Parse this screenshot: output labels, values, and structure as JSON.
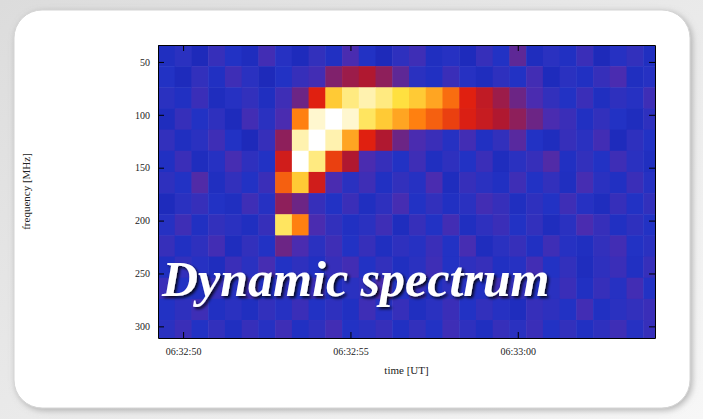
{
  "chart_data": {
    "type": "heatmap",
    "annotation": "Dynamic spectrum",
    "xlabel": "time [UT]",
    "ylabel": "frequency [MHz]",
    "xlim": [
      49.25,
      64.1
    ],
    "ylim": [
      34,
      311
    ],
    "xticks": [
      {
        "value": 50,
        "label": "06:32:50"
      },
      {
        "value": 55,
        "label": "06:32:55"
      },
      {
        "value": 60,
        "label": "06:33:00"
      }
    ],
    "yticks": [
      50,
      100,
      150,
      200,
      250,
      300
    ],
    "xbins": [
      49.25,
      49.75,
      50.25,
      50.75,
      51.25,
      51.75,
      52.25,
      52.75,
      53.25,
      53.75,
      54.25,
      54.75,
      55.25,
      55.75,
      56.25,
      56.75,
      57.25,
      57.75,
      58.25,
      58.75,
      59.25,
      59.75,
      60.25,
      60.75,
      61.25,
      61.75,
      62.25,
      62.75,
      63.25,
      63.75,
      64.25
    ],
    "ybins": [
      34,
      54,
      74,
      94,
      114,
      134,
      154,
      174,
      194,
      214,
      234,
      254,
      274,
      294,
      311
    ],
    "zlim": [
      0,
      1
    ],
    "z": [
      [
        0.18,
        0.22,
        0.15,
        0.25,
        0.2,
        0.17,
        0.28,
        0.21,
        0.16,
        0.24,
        0.19,
        0.3,
        0.2,
        0.15,
        0.23,
        0.27,
        0.18,
        0.21,
        0.16,
        0.25,
        0.2,
        0.33,
        0.17,
        0.22,
        0.19,
        0.26,
        0.15,
        0.21,
        0.24,
        0.18
      ],
      [
        0.2,
        0.16,
        0.24,
        0.19,
        0.27,
        0.22,
        0.15,
        0.2,
        0.25,
        0.28,
        0.38,
        0.42,
        0.45,
        0.4,
        0.33,
        0.22,
        0.19,
        0.26,
        0.21,
        0.17,
        0.23,
        0.2,
        0.28,
        0.16,
        0.22,
        0.19,
        0.25,
        0.3,
        0.18,
        0.21
      ],
      [
        0.22,
        0.19,
        0.26,
        0.17,
        0.21,
        0.24,
        0.18,
        0.27,
        0.35,
        0.6,
        0.85,
        0.92,
        0.95,
        0.92,
        0.88,
        0.85,
        0.8,
        0.72,
        0.6,
        0.5,
        0.42,
        0.35,
        0.3,
        0.24,
        0.2,
        0.26,
        0.18,
        0.23,
        0.21,
        0.27
      ],
      [
        0.17,
        0.25,
        0.2,
        0.23,
        0.16,
        0.28,
        0.22,
        0.3,
        0.75,
        0.97,
        1,
        0.97,
        0.9,
        0.85,
        0.8,
        0.75,
        0.7,
        0.65,
        0.58,
        0.52,
        0.45,
        0.4,
        0.35,
        0.3,
        0.26,
        0.19,
        0.24,
        0.2,
        0.17,
        0.23
      ],
      [
        0.24,
        0.18,
        0.22,
        0.27,
        0.2,
        0.15,
        0.25,
        0.4,
        0.95,
        1,
        0.95,
        0.8,
        0.6,
        0.45,
        0.35,
        0.3,
        0.26,
        0.21,
        0.28,
        0.19,
        0.24,
        0.32,
        0.2,
        0.17,
        0.25,
        0.22,
        0.28,
        0.16,
        0.23,
        0.2
      ],
      [
        0.19,
        0.26,
        0.17,
        0.21,
        0.29,
        0.23,
        0.2,
        0.55,
        1,
        0.92,
        0.65,
        0.45,
        0.3,
        0.25,
        0.2,
        0.27,
        0.18,
        0.23,
        0.2,
        0.26,
        0.17,
        0.22,
        0.25,
        0.31,
        0.19,
        0.24,
        0.2,
        0.27,
        0.22,
        0.18
      ],
      [
        0.23,
        0.2,
        0.31,
        0.18,
        0.24,
        0.2,
        0.26,
        0.7,
        0.85,
        0.55,
        0.3,
        0.22,
        0.27,
        0.19,
        0.24,
        0.21,
        0.3,
        0.17,
        0.25,
        0.22,
        0.19,
        0.27,
        0.2,
        0.24,
        0.18,
        0.29,
        0.22,
        0.19,
        0.26,
        0.21
      ],
      [
        0.16,
        0.22,
        0.25,
        0.2,
        0.18,
        0.27,
        0.21,
        0.4,
        0.35,
        0.25,
        0.2,
        0.26,
        0.18,
        0.23,
        0.29,
        0.2,
        0.24,
        0.19,
        0.22,
        0.28,
        0.25,
        0.18,
        0.23,
        0.2,
        0.27,
        0.21,
        0.17,
        0.25,
        0.2,
        0.24
      ],
      [
        0.21,
        0.27,
        0.19,
        0.24,
        0.22,
        0.18,
        0.25,
        0.9,
        0.75,
        0.3,
        0.24,
        0.19,
        0.22,
        0.27,
        0.17,
        0.25,
        0.2,
        0.28,
        0.18,
        0.23,
        0.26,
        0.2,
        0.24,
        0.17,
        0.22,
        0.3,
        0.25,
        0.19,
        0.23,
        0.2
      ],
      [
        0.25,
        0.19,
        0.23,
        0.28,
        0.17,
        0.24,
        0.2,
        0.35,
        0.3,
        0.22,
        0.27,
        0.2,
        0.25,
        0.18,
        0.23,
        0.21,
        0.26,
        0.2,
        0.29,
        0.17,
        0.22,
        0.25,
        0.19,
        0.27,
        0.21,
        0.18,
        0.24,
        0.28,
        0.2,
        0.22
      ],
      [
        0.18,
        0.24,
        0.21,
        0.17,
        0.26,
        0.22,
        0.29,
        0.2,
        0.23,
        0.19,
        0.25,
        0.28,
        0.2,
        0.24,
        0.18,
        0.22,
        0.27,
        0.2,
        0.23,
        0.25,
        0.19,
        0.21,
        0.28,
        0.2,
        0.24,
        0.17,
        0.23,
        0.26,
        0.19,
        0.25
      ],
      [
        0.26,
        0.2,
        0.18,
        0.25,
        0.21,
        0.27,
        0.19,
        0.23,
        0.2,
        0.26,
        0.17,
        0.22,
        0.24,
        0.3,
        0.2,
        0.25,
        0.18,
        0.23,
        0.21,
        0.19,
        0.27,
        0.24,
        0.2,
        0.22,
        0.26,
        0.19,
        0.25,
        0.21,
        0.28,
        0.2
      ],
      [
        0.2,
        0.23,
        0.27,
        0.19,
        0.22,
        0.18,
        0.24,
        0.21,
        0.26,
        0.2,
        0.23,
        0.19,
        0.27,
        0.21,
        0.25,
        0.18,
        0.22,
        0.26,
        0.2,
        0.24,
        0.21,
        0.17,
        0.25,
        0.23,
        0.2,
        0.28,
        0.19,
        0.22,
        0.24,
        0.26
      ],
      [
        0.22,
        0.26,
        0.2,
        0.24,
        0.18,
        0.25,
        0.21,
        0.27,
        0.19,
        0.23,
        0.28,
        0.2,
        0.22,
        0.25,
        0.19,
        0.24,
        0.2,
        0.27,
        0.23,
        0.18,
        0.25,
        0.22,
        0.26,
        0.2,
        0.24,
        0.19,
        0.23,
        0.27,
        0.21,
        0.25
      ]
    ]
  }
}
